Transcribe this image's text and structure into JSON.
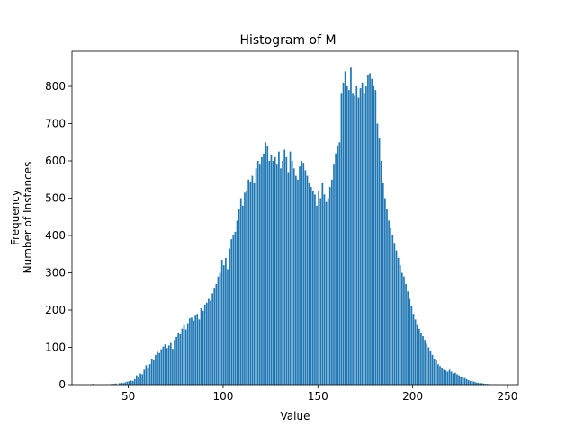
{
  "chart_data": {
    "type": "histogram",
    "title": "Histogram of M",
    "xlabel": "Value",
    "ylabel": [
      "Frequency",
      "Number of Instances"
    ],
    "color": "#1f77b4",
    "bins": [
      31,
      32,
      33,
      34,
      35,
      36,
      37,
      38,
      39,
      40,
      41,
      42,
      43,
      44,
      45,
      46,
      47,
      48,
      49,
      50,
      51,
      52,
      53,
      54,
      55,
      56,
      57,
      58,
      59,
      60,
      61,
      62,
      63,
      64,
      65,
      66,
      67,
      68,
      69,
      70,
      71,
      72,
      73,
      74,
      75,
      76,
      77,
      78,
      79,
      80,
      81,
      82,
      83,
      84,
      85,
      86,
      87,
      88,
      89,
      90,
      91,
      92,
      93,
      94,
      95,
      96,
      97,
      98,
      99,
      100,
      101,
      102,
      103,
      104,
      105,
      106,
      107,
      108,
      109,
      110,
      111,
      112,
      113,
      114,
      115,
      116,
      117,
      118,
      119,
      120,
      121,
      122,
      123,
      124,
      125,
      126,
      127,
      128,
      129,
      130,
      131,
      132,
      133,
      134,
      135,
      136,
      137,
      138,
      139,
      140,
      141,
      142,
      143,
      144,
      145,
      146,
      147,
      148,
      149,
      150,
      151,
      152,
      153,
      154,
      155,
      156,
      157,
      158,
      159,
      160,
      161,
      162,
      163,
      164,
      165,
      166,
      167,
      168,
      169,
      170,
      171,
      172,
      173,
      174,
      175,
      176,
      177,
      178,
      179,
      180,
      181,
      182,
      183,
      184,
      185,
      186,
      187,
      188,
      189,
      190,
      191,
      192,
      193,
      194,
      195,
      196,
      197,
      198,
      199,
      200,
      201,
      202,
      203,
      204,
      205,
      206,
      207,
      208,
      209,
      210,
      211,
      212,
      213,
      214,
      215,
      216,
      217,
      218,
      219,
      220,
      221,
      222,
      223,
      224,
      225,
      226,
      227,
      228,
      229,
      230,
      231,
      232,
      233,
      234,
      235,
      236,
      237,
      238,
      239,
      240,
      241,
      242,
      243,
      244,
      245
    ],
    "values": [
      2,
      0,
      0,
      0,
      0,
      0,
      0,
      1,
      0,
      0,
      3,
      2,
      3,
      0,
      4,
      5,
      4,
      6,
      8,
      9,
      11,
      10,
      15,
      25,
      20,
      30,
      28,
      40,
      52,
      45,
      55,
      70,
      68,
      80,
      88,
      85,
      95,
      102,
      108,
      98,
      105,
      112,
      96,
      120,
      128,
      140,
      135,
      150,
      160,
      148,
      165,
      178,
      180,
      172,
      185,
      190,
      175,
      205,
      198,
      215,
      220,
      230,
      225,
      245,
      260,
      270,
      290,
      300,
      335,
      320,
      340,
      310,
      365,
      390,
      400,
      410,
      440,
      470,
      500,
      480,
      515,
      520,
      550,
      545,
      560,
      540,
      580,
      600,
      590,
      610,
      620,
      650,
      640,
      600,
      615,
      600,
      610,
      590,
      625,
      580,
      600,
      630,
      610,
      570,
      625,
      600,
      580,
      560,
      550,
      585,
      600,
      595,
      575,
      560,
      540,
      530,
      520,
      510,
      480,
      520,
      500,
      540,
      510,
      490,
      500,
      530,
      550,
      590,
      620,
      640,
      650,
      780,
      810,
      840,
      800,
      790,
      850,
      780,
      775,
      800,
      770,
      795,
      810,
      780,
      800,
      830,
      835,
      820,
      800,
      790,
      700,
      660,
      600,
      540,
      500,
      470,
      440,
      420,
      400,
      380,
      360,
      340,
      320,
      300,
      290,
      270,
      250,
      230,
      210,
      190,
      175,
      160,
      150,
      140,
      130,
      120,
      110,
      100,
      90,
      80,
      70,
      65,
      55,
      50,
      45,
      40,
      38,
      35,
      40,
      35,
      30,
      32,
      28,
      25,
      22,
      20,
      18,
      15,
      12,
      10,
      9,
      8,
      6,
      5,
      4,
      4,
      3,
      2,
      2,
      1,
      1,
      0,
      1,
      1
    ],
    "xlim": [
      20.3,
      255.7
    ],
    "ylim": [
      0,
      894
    ],
    "xticks": [
      50,
      100,
      150,
      200,
      250
    ],
    "yticks": [
      0,
      100,
      200,
      300,
      400,
      500,
      600,
      700,
      800
    ]
  }
}
